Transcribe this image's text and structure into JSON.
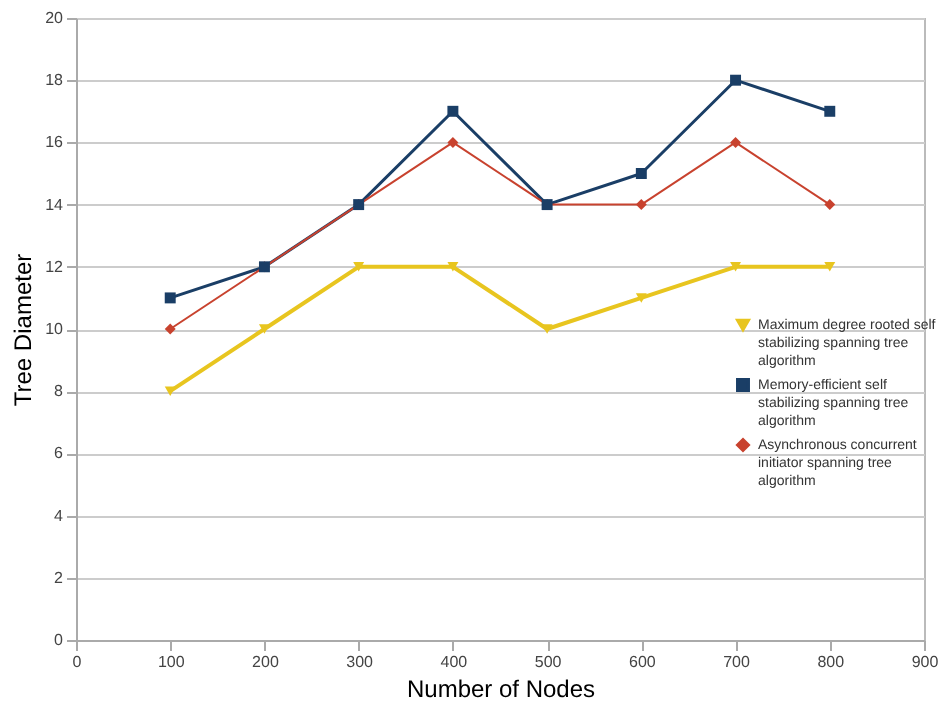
{
  "chart_data": {
    "type": "line",
    "xlabel": "Number of Nodes",
    "ylabel": "Tree Diameter",
    "x": [
      100,
      200,
      300,
      400,
      500,
      600,
      700,
      800
    ],
    "series": [
      {
        "name": "Maximum degree rooted self stabilizing spanning tree algorithm",
        "color": "#e8c51f",
        "marker": "triangle-down",
        "values": [
          8,
          10,
          12,
          12,
          10,
          11,
          12,
          12
        ]
      },
      {
        "name": "Memory-efficient self stabilizing spanning tree algorithm",
        "color": "#1a3e66",
        "marker": "square",
        "values": [
          11,
          12,
          14,
          17,
          14,
          15,
          18,
          17
        ]
      },
      {
        "name": "Asynchronous concurrent initiator spanning tree algorithm",
        "color": "#c8422e",
        "marker": "diamond",
        "values": [
          10,
          12,
          14,
          16,
          14,
          14,
          16,
          14
        ]
      }
    ],
    "xlim": [
      0,
      900
    ],
    "xticks": [
      0,
      100,
      200,
      300,
      400,
      500,
      600,
      700,
      800,
      900
    ],
    "ylim": [
      0,
      20
    ],
    "yticks": [
      0,
      2,
      4,
      6,
      8,
      10,
      12,
      14,
      16,
      18,
      20
    ],
    "grid": "y",
    "legend": "right"
  }
}
